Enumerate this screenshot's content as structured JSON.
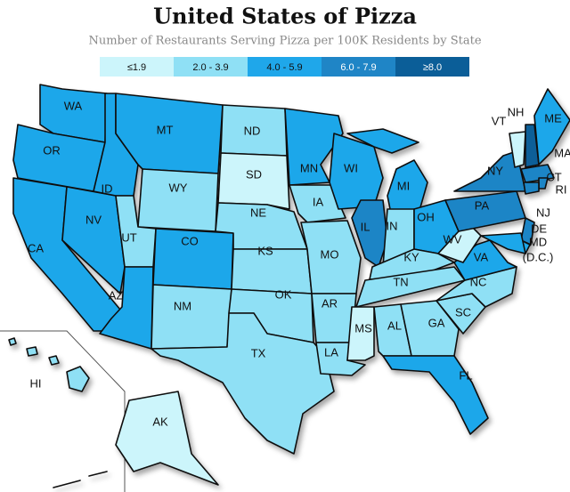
{
  "title": "United States of Pizza",
  "subtitle": "Number of Restaurants Serving Pizza per 100K Residents by State",
  "legend": [
    {
      "label": "≤1.9",
      "color": "#ccf5fb"
    },
    {
      "label": "2.0 - 3.9",
      "color": "#8fe0f5"
    },
    {
      "label": "4.0 - 5.9",
      "color": "#1fa7ea"
    },
    {
      "label": "6.0 - 7.9",
      "color": "#1f85c6"
    },
    {
      "label": "≥8.0",
      "color": "#0b5e98"
    }
  ],
  "states": [
    {
      "label": "WA",
      "color": "#1fa7ea"
    },
    {
      "label": "OR",
      "color": "#1fa7ea"
    },
    {
      "label": "CA",
      "color": "#1fa7ea"
    },
    {
      "label": "NV",
      "color": "#1fa7ea"
    },
    {
      "label": "ID",
      "color": "#1fa7ea"
    },
    {
      "label": "MT",
      "color": "#1fa7ea"
    },
    {
      "label": "WY",
      "color": "#8fe0f5"
    },
    {
      "label": "UT",
      "color": "#8fe0f5"
    },
    {
      "label": "CO",
      "color": "#1fa7ea"
    },
    {
      "label": "AZ",
      "color": "#1fa7ea"
    },
    {
      "label": "NM",
      "color": "#8fe0f5"
    },
    {
      "label": "ND",
      "color": "#8fe0f5"
    },
    {
      "label": "SD",
      "color": "#ccf5fb"
    },
    {
      "label": "NE",
      "color": "#8fe0f5"
    },
    {
      "label": "KS",
      "color": "#8fe0f5"
    },
    {
      "label": "OK",
      "color": "#8fe0f5"
    },
    {
      "label": "TX",
      "color": "#8fe0f5"
    },
    {
      "label": "MN",
      "color": "#1fa7ea"
    },
    {
      "label": "IA",
      "color": "#8fe0f5"
    },
    {
      "label": "MO",
      "color": "#8fe0f5"
    },
    {
      "label": "AR",
      "color": "#8fe0f5"
    },
    {
      "label": "LA",
      "color": "#8fe0f5"
    },
    {
      "label": "WI",
      "color": "#1fa7ea"
    },
    {
      "label": "IL",
      "color": "#1f85c6"
    },
    {
      "label": "MI",
      "color": "#1fa7ea"
    },
    {
      "label": "IN",
      "color": "#8fe0f5"
    },
    {
      "label": "OH",
      "color": "#1fa7ea"
    },
    {
      "label": "KY",
      "color": "#8fe0f5"
    },
    {
      "label": "TN",
      "color": "#8fe0f5"
    },
    {
      "label": "MS",
      "color": "#ccf5fb"
    },
    {
      "label": "AL",
      "color": "#8fe0f5"
    },
    {
      "label": "GA",
      "color": "#8fe0f5"
    },
    {
      "label": "FL",
      "color": "#1fa7ea"
    },
    {
      "label": "SC",
      "color": "#8fe0f5"
    },
    {
      "label": "NC",
      "color": "#8fe0f5"
    },
    {
      "label": "VA",
      "color": "#1fa7ea"
    },
    {
      "label": "WV",
      "color": "#ccf5fb"
    },
    {
      "label": "PA",
      "color": "#1f85c6"
    },
    {
      "label": "NY",
      "color": "#1f85c6"
    },
    {
      "label": "NJ",
      "color": "#1f85c6"
    },
    {
      "label": "DE",
      "color": "#1fa7ea"
    },
    {
      "label": "MD",
      "color": "#1fa7ea"
    },
    {
      "label": "VT",
      "color": "#ccf5fb"
    },
    {
      "label": "NH",
      "color": "#0b5e98"
    },
    {
      "label": "ME",
      "color": "#1fa7ea"
    },
    {
      "label": "MA",
      "color": "#1f85c6"
    },
    {
      "label": "RI",
      "color": "#1f85c6"
    },
    {
      "label": "CT",
      "color": "#1f85c6"
    },
    {
      "label": "HI",
      "color": "#8fe0f5"
    },
    {
      "label": "AK",
      "color": "#ccf5fb"
    }
  ],
  "annotation": "(D.C.)"
}
